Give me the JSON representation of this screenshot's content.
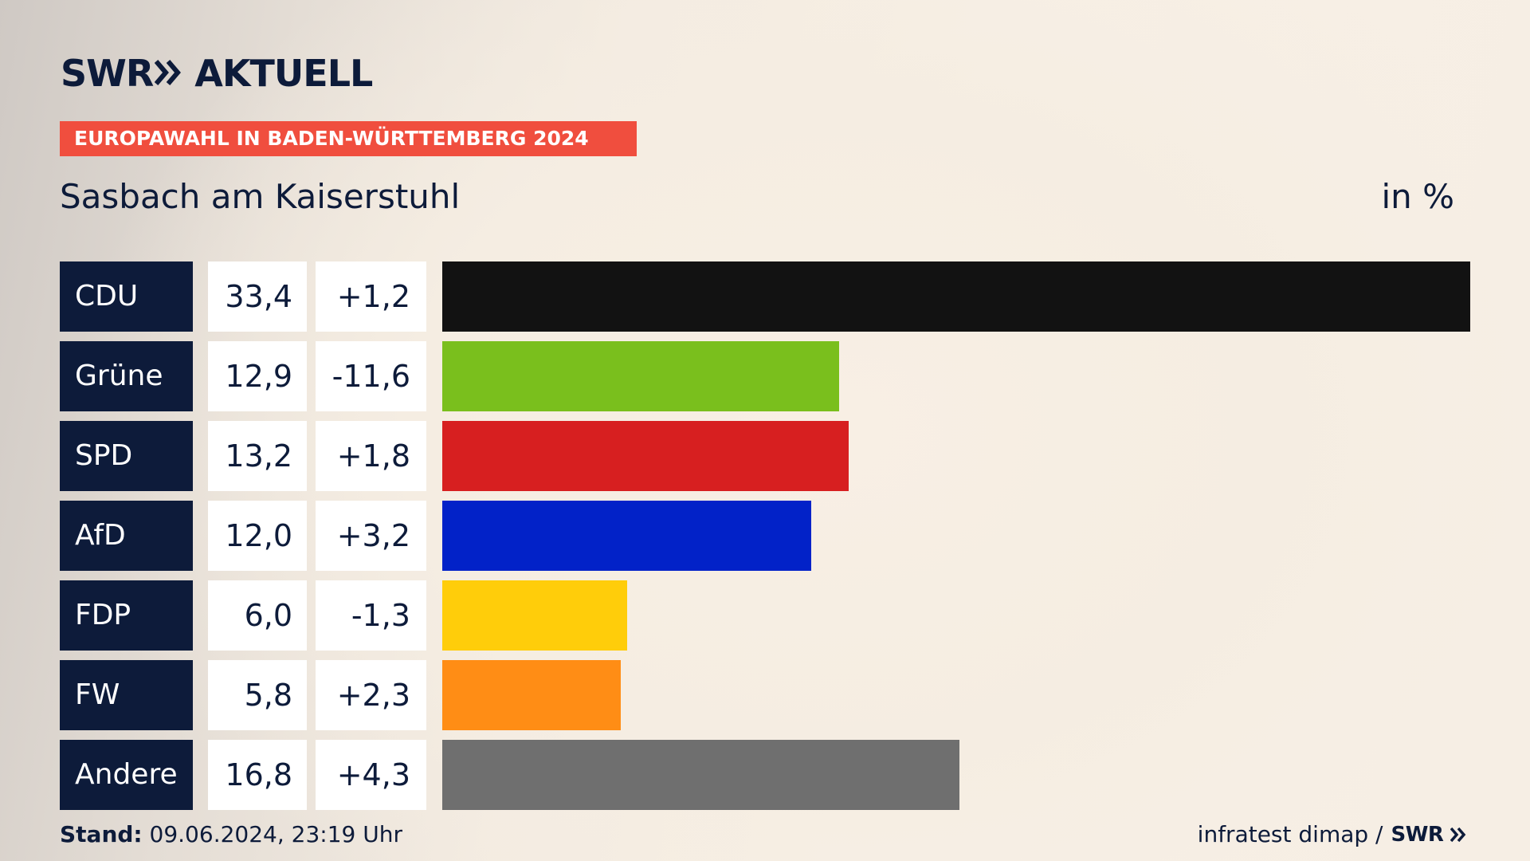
{
  "header": {
    "logo_text": "SWR",
    "logo_suffix": "AKTUELL",
    "banner": "EUROPAWAHL IN BADEN-WÜRTTEMBERG 2024",
    "region": "Sasbach am Kaiserstuhl",
    "unit": "in %"
  },
  "chart_data": {
    "type": "bar",
    "orientation": "horizontal",
    "title": "EUROPAWAHL IN BADEN-WÜRTTEMBERG 2024",
    "subtitle": "Sasbach am Kaiserstuhl",
    "unit": "in %",
    "xlim": [
      0,
      33.4
    ],
    "categories": [
      "CDU",
      "Grüne",
      "SPD",
      "AfD",
      "FDP",
      "FW",
      "Andere"
    ],
    "values": [
      33.4,
      12.9,
      13.2,
      12.0,
      6.0,
      5.8,
      16.8
    ],
    "value_labels": [
      "33,4",
      "12,9",
      "13,2",
      "12,0",
      "6,0",
      "5,8",
      "16,8"
    ],
    "changes": [
      1.2,
      -11.6,
      1.8,
      3.2,
      -1.3,
      2.3,
      4.3
    ],
    "change_labels": [
      "+1,2",
      "-11,6",
      "+1,8",
      "+3,2",
      "-1,3",
      "+2,3",
      "+4,3"
    ],
    "colors": [
      "#121212",
      "#7abf1d",
      "#d71f20",
      "#0222c8",
      "#ffcd0a",
      "#ff8d15",
      "#6f6f6f"
    ],
    "grid": false,
    "legend": "none"
  },
  "footer": {
    "stand_label": "Stand:",
    "stand_value": "09.06.2024, 23:19 Uhr",
    "source": "infratest dimap /",
    "source_logo": "SWR"
  }
}
